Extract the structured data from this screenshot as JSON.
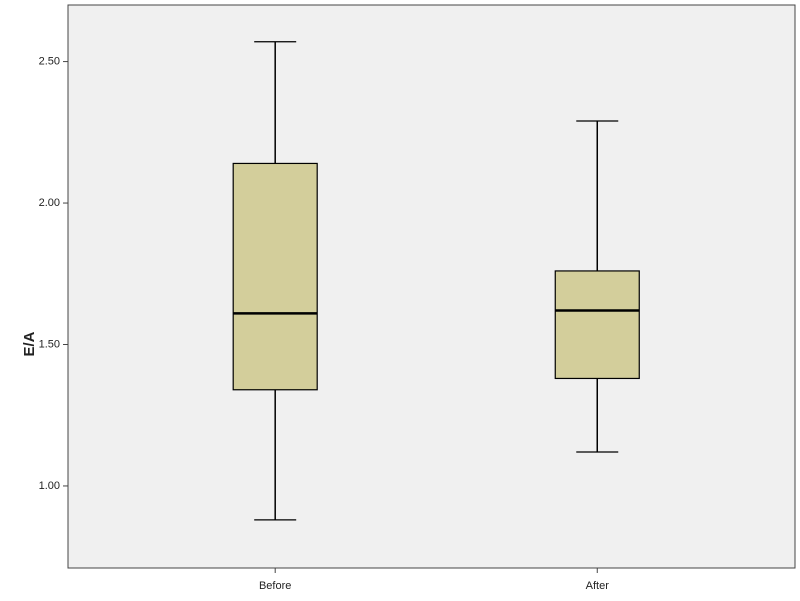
{
  "chart_data": {
    "type": "box",
    "y_label": "E/A",
    "categories": [
      "Before",
      "After"
    ],
    "boxes": [
      {
        "min": 0.88,
        "q1": 1.34,
        "median": 1.61,
        "q3": 2.14,
        "max": 2.57
      },
      {
        "min": 1.12,
        "q1": 1.38,
        "median": 1.62,
        "q3": 1.76,
        "max": 2.29
      }
    ],
    "color": "#d3ce9b",
    "background": "#f0f0f0",
    "ylim": [
      0.71,
      2.7
    ],
    "yticks": [
      {
        "value": 1,
        "label": "1.00"
      },
      {
        "value": 1.5,
        "label": "1.50"
      },
      {
        "value": 2,
        "label": "2.00"
      },
      {
        "value": 2.5,
        "label": "2.50"
      }
    ],
    "grid": false
  }
}
